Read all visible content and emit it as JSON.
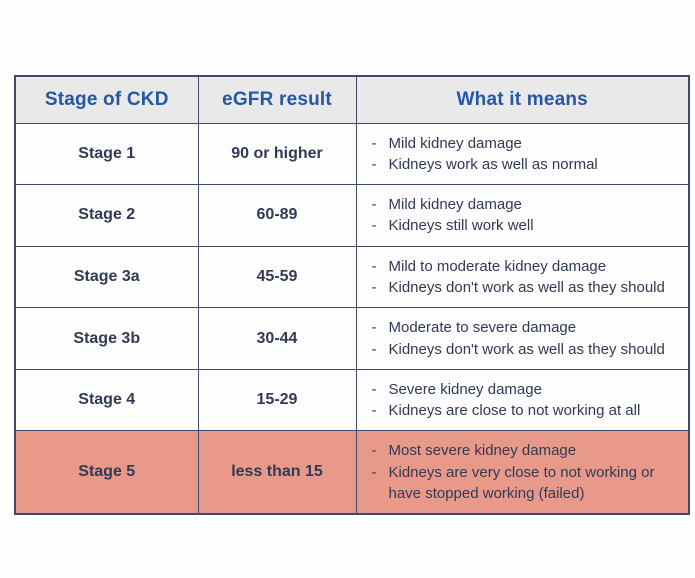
{
  "table": {
    "bullet_char": "-",
    "headers": [
      "Stage of CKD",
      "eGFR result",
      "What it means"
    ],
    "rows": [
      {
        "stage": "Stage 1",
        "egfr": "90 or higher",
        "meaning": [
          "Mild kidney damage",
          "Kidneys work as well as normal"
        ],
        "highlight": false
      },
      {
        "stage": "Stage 2",
        "egfr": "60-89",
        "meaning": [
          "Mild kidney damage",
          "Kidneys still work well"
        ],
        "highlight": false
      },
      {
        "stage": "Stage 3a",
        "egfr": "45-59",
        "meaning": [
          "Mild to moderate kidney damage",
          "Kidneys don't work as well as they should"
        ],
        "highlight": false
      },
      {
        "stage": "Stage 3b",
        "egfr": "30-44",
        "meaning": [
          "Moderate to severe damage",
          "Kidneys don't work as well as they should"
        ],
        "highlight": false
      },
      {
        "stage": "Stage 4",
        "egfr": "15-29",
        "meaning": [
          "Severe kidney damage",
          "Kidneys are close to not working at all"
        ],
        "highlight": false
      },
      {
        "stage": "Stage 5",
        "egfr": "less than 15",
        "meaning": [
          "Most severe kidney damage",
          "Kidneys are very close to not working or have stopped working (failed)"
        ],
        "highlight": true
      }
    ],
    "colors": {
      "header_bg": "#e9e9e9",
      "header_text": "#2457a5",
      "body_text": "#313a54",
      "border": "#3f4a68",
      "highlight_bg": "#e9998a"
    }
  },
  "chart_data": {
    "type": "table",
    "title": "",
    "columns": [
      "Stage of CKD",
      "eGFR result",
      "What it means"
    ],
    "rows": [
      [
        "Stage 1",
        "90 or higher",
        [
          "Mild kidney damage",
          "Kidneys work as well as normal"
        ]
      ],
      [
        "Stage 2",
        "60-89",
        [
          "Mild kidney damage",
          "Kidneys still work well"
        ]
      ],
      [
        "Stage 3a",
        "45-59",
        [
          "Mild to moderate kidney damage",
          "Kidneys don't work as well as they should"
        ]
      ],
      [
        "Stage 3b",
        "30-44",
        [
          "Moderate to severe damage",
          "Kidneys don't work as well as they should"
        ]
      ],
      [
        "Stage 4",
        "15-29",
        [
          "Severe kidney damage",
          "Kidneys are close to not working at all"
        ]
      ],
      [
        "Stage 5",
        "less than 15",
        [
          "Most severe kidney damage",
          "Kidneys are very close to not working or have stopped working (failed)"
        ]
      ]
    ],
    "layout_hints": {
      "highlighted_row": "Stage 5",
      "highlight_color": "#e9998a",
      "header_style": "gray background, blue bold text",
      "grid": true
    }
  }
}
